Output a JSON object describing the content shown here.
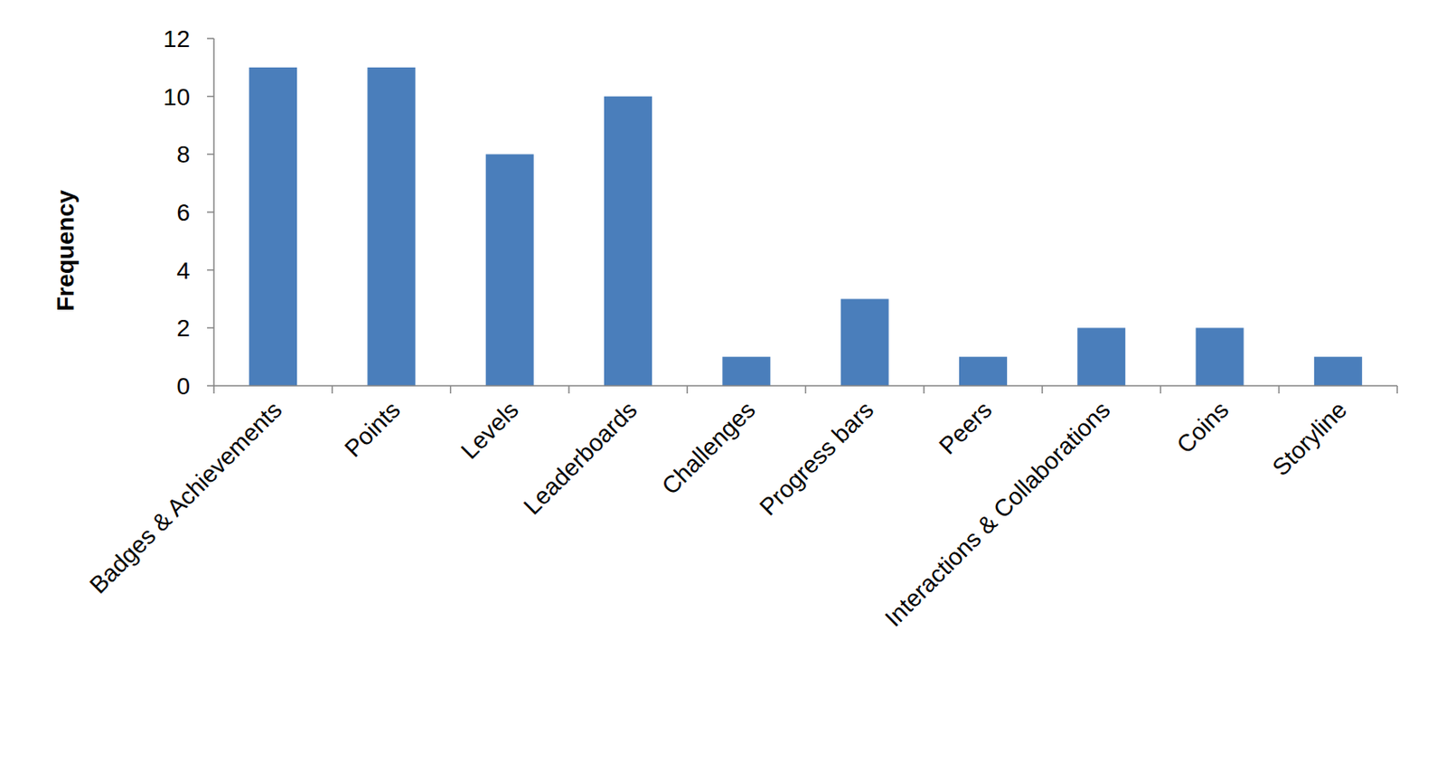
{
  "chart_data": {
    "type": "bar",
    "y_label": "Frequency",
    "categories": [
      "Badges & Achievements",
      "Points",
      "Levels",
      "Leaderboards",
      "Challenges",
      "Progress  bars",
      "Peers",
      "Interactions & Collaborations",
      "Coins",
      "Storyline"
    ],
    "values": [
      11,
      11,
      8,
      10,
      1,
      3,
      1,
      2,
      2,
      1
    ],
    "color": "#4a7ebb",
    "ylim": [
      0,
      12
    ],
    "yticks": [
      0,
      2,
      4,
      6,
      8,
      10,
      12
    ],
    "grid": false
  }
}
